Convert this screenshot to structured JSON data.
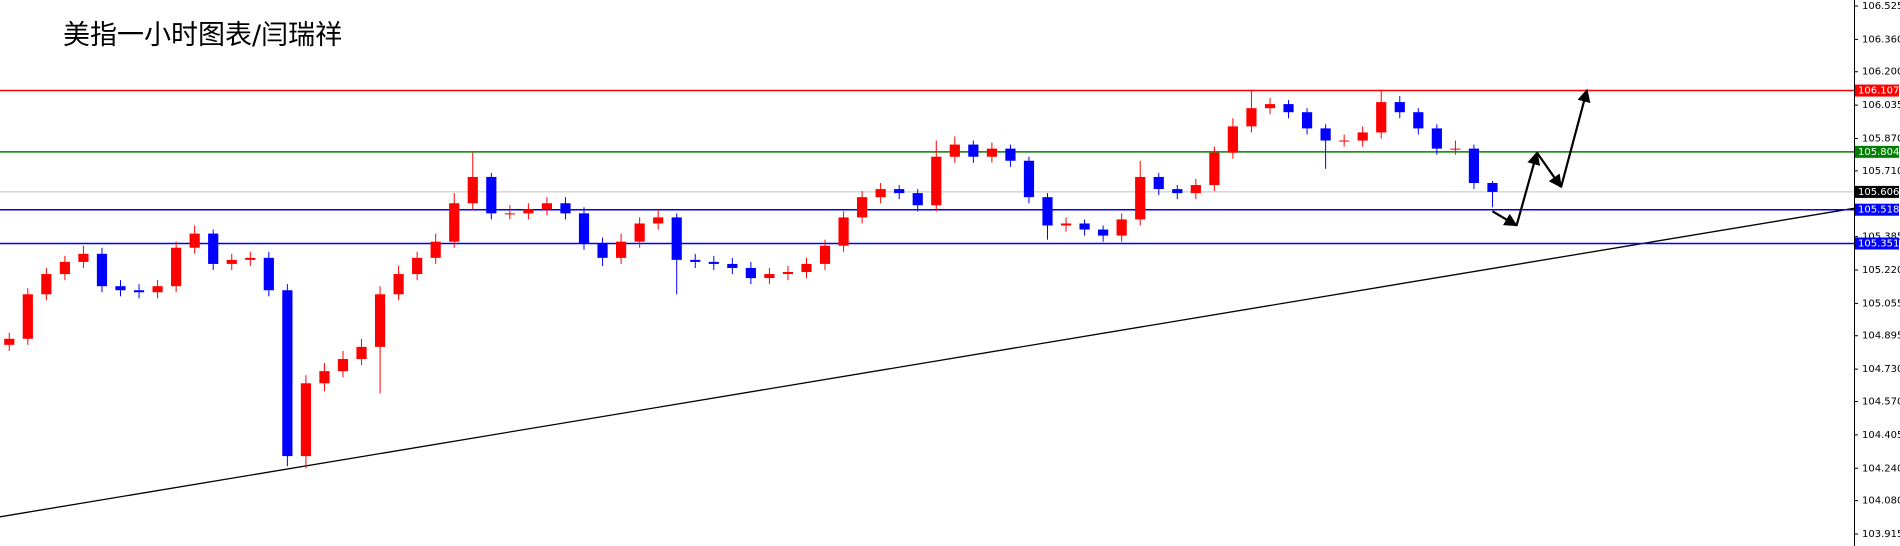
{
  "chart_data": {
    "type": "candlestick",
    "title": "美指一小时图表/闫瑞祥",
    "up_color": "#ff0000",
    "down_color": "#0000ff",
    "xlim": [
      0,
      100
    ],
    "ylim": [
      103.915,
      106.525
    ],
    "yticks": [
      106.525,
      {
        "value": 106.36,
        "label": "106.360"
      },
      {
        "value": 106.2,
        "label": "106.200"
      },
      106.035,
      {
        "value": 105.87,
        "label": "105.870"
      },
      {
        "value": 105.71,
        "label": "105.710"
      },
      105.385,
      {
        "value": 105.22,
        "label": "105.220"
      },
      105.055,
      104.895,
      {
        "value": 104.73,
        "label": "104.730"
      },
      {
        "value": 104.57,
        "label": "104.570"
      },
      104.405,
      {
        "value": 104.24,
        "label": "104.240"
      },
      {
        "value": 104.08,
        "label": "104.080"
      },
      103.915
    ],
    "open": [
      104.85,
      104.88,
      105.1,
      105.2,
      105.26,
      105.3,
      105.14,
      105.12,
      105.11,
      105.14,
      105.33,
      105.4,
      105.25,
      105.27,
      105.28,
      105.12,
      104.3,
      104.66,
      104.72,
      104.78,
      104.84,
      105.1,
      105.2,
      105.28,
      105.36,
      105.55,
      105.68,
      105.5,
      105.5,
      105.52,
      105.55,
      105.5,
      105.35,
      105.28,
      105.36,
      105.45,
      105.48,
      105.27,
      105.26,
      105.25,
      105.23,
      105.18,
      105.2,
      105.21,
      105.25,
      105.34,
      105.48,
      105.58,
      105.62,
      105.6,
      105.54,
      105.78,
      105.84,
      105.78,
      105.82,
      105.76,
      105.58,
      105.44,
      105.45,
      105.42,
      105.39,
      105.47,
      105.68,
      105.62,
      105.6,
      105.64,
      105.8,
      105.93,
      106.02,
      106.04,
      106.0,
      105.92,
      105.86,
      105.86,
      105.9,
      106.05,
      106.0,
      105.92,
      105.82,
      105.82,
      105.65
    ],
    "high": [
      104.91,
      105.13,
      105.23,
      105.29,
      105.34,
      105.33,
      105.17,
      105.15,
      105.17,
      105.36,
      105.44,
      105.42,
      105.3,
      105.31,
      105.31,
      105.15,
      104.7,
      104.76,
      104.82,
      104.88,
      105.14,
      105.24,
      105.31,
      105.4,
      105.6,
      105.8,
      105.7,
      105.54,
      105.55,
      105.58,
      105.58,
      105.53,
      105.38,
      105.4,
      105.48,
      105.52,
      105.5,
      105.3,
      105.29,
      105.28,
      105.26,
      105.23,
      105.24,
      105.28,
      105.37,
      105.51,
      105.61,
      105.65,
      105.64,
      105.62,
      105.86,
      105.88,
      105.86,
      105.85,
      105.84,
      105.78,
      105.6,
      105.48,
      105.47,
      105.44,
      105.5,
      105.76,
      105.7,
      105.64,
      105.67,
      105.83,
      105.97,
      106.11,
      106.07,
      106.06,
      106.02,
      105.94,
      105.89,
      105.93,
      106.11,
      106.08,
      106.02,
      105.94,
      105.86,
      105.84,
      105.66
    ],
    "low": [
      104.82,
      104.85,
      105.07,
      105.17,
      105.23,
      105.11,
      105.09,
      105.08,
      105.08,
      105.11,
      105.3,
      105.22,
      105.22,
      105.24,
      105.09,
      104.25,
      104.24,
      104.62,
      104.69,
      104.75,
      104.61,
      105.07,
      105.17,
      105.25,
      105.33,
      105.52,
      105.47,
      105.47,
      105.47,
      105.49,
      105.47,
      105.32,
      105.24,
      105.25,
      105.33,
      105.42,
      105.1,
      105.23,
      105.22,
      105.2,
      105.15,
      105.15,
      105.17,
      105.18,
      105.22,
      105.31,
      105.45,
      105.55,
      105.57,
      105.51,
      105.51,
      105.75,
      105.75,
      105.75,
      105.73,
      105.55,
      105.37,
      105.41,
      105.39,
      105.36,
      105.36,
      105.44,
      105.59,
      105.57,
      105.57,
      105.61,
      105.77,
      105.9,
      105.99,
      105.97,
      105.89,
      105.72,
      105.83,
      105.83,
      105.87,
      105.97,
      105.89,
      105.79,
      105.79,
      105.62,
      105.53
    ],
    "close": [
      104.88,
      105.1,
      105.2,
      105.26,
      105.3,
      105.14,
      105.12,
      105.11,
      105.14,
      105.33,
      105.4,
      105.25,
      105.27,
      105.28,
      105.12,
      104.3,
      104.66,
      104.72,
      104.78,
      104.84,
      105.1,
      105.2,
      105.28,
      105.36,
      105.55,
      105.68,
      105.5,
      105.5,
      105.52,
      105.55,
      105.5,
      105.35,
      105.28,
      105.36,
      105.45,
      105.48,
      105.27,
      105.26,
      105.25,
      105.23,
      105.18,
      105.2,
      105.21,
      105.25,
      105.34,
      105.48,
      105.58,
      105.62,
      105.6,
      105.54,
      105.78,
      105.84,
      105.78,
      105.82,
      105.76,
      105.58,
      105.44,
      105.45,
      105.42,
      105.39,
      105.47,
      105.68,
      105.62,
      105.6,
      105.64,
      105.8,
      105.93,
      106.02,
      106.04,
      106.0,
      105.92,
      105.86,
      105.86,
      105.9,
      106.05,
      106.0,
      105.92,
      105.82,
      105.82,
      105.65,
      105.606
    ],
    "levels": [
      {
        "value": 106.107,
        "color": "#ff0000"
      },
      {
        "value": 105.804,
        "color": "#008000"
      },
      {
        "value": 105.518,
        "color": "#0000ff"
      },
      {
        "value": 105.351,
        "color": "#0000ff"
      }
    ],
    "current_price": {
      "value": 105.606,
      "color": "#000000"
    },
    "trendline": {
      "x": [
        0,
        100
      ],
      "y": [
        104.0,
        105.525
      ],
      "color": "#000000"
    },
    "projection": {
      "x": [
        80.5,
        81.8,
        82.9,
        84.2,
        85.6
      ],
      "y": [
        105.51,
        105.44,
        105.8,
        105.63,
        106.11
      ],
      "color": "#000000"
    }
  }
}
